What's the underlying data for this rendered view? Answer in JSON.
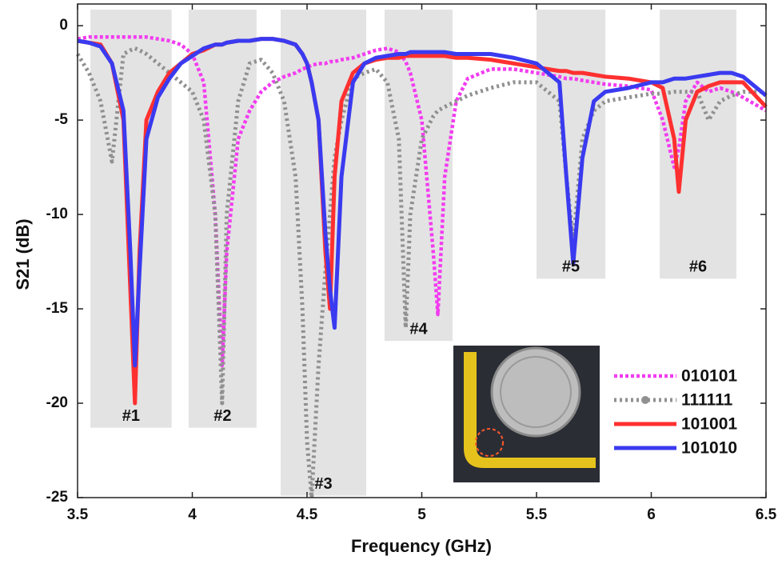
{
  "chart_data": {
    "type": "line",
    "xlabel": "Frequency (GHz)",
    "ylabel": "S21 (dB)",
    "xlim": [
      3.5,
      6.5
    ],
    "ylim": [
      -25,
      1.15
    ],
    "xticks": [
      3.5,
      4,
      4.5,
      5,
      5.5,
      6,
      6.5
    ],
    "yticks": [
      0,
      -5,
      -10,
      -15,
      -20,
      -25
    ],
    "x": [
      3.5,
      3.55,
      3.6,
      3.65,
      3.7,
      3.73,
      3.75,
      3.77,
      3.8,
      3.85,
      3.9,
      3.95,
      4.0,
      4.05,
      4.1,
      4.13,
      4.15,
      4.2,
      4.25,
      4.3,
      4.35,
      4.4,
      4.45,
      4.48,
      4.5,
      4.52,
      4.55,
      4.58,
      4.6,
      4.62,
      4.65,
      4.7,
      4.75,
      4.8,
      4.85,
      4.9,
      4.93,
      4.95,
      5.0,
      5.05,
      5.07,
      5.1,
      5.15,
      5.2,
      5.3,
      5.4,
      5.5,
      5.6,
      5.63,
      5.66,
      5.7,
      5.75,
      5.8,
      5.9,
      6.0,
      6.05,
      6.1,
      6.12,
      6.15,
      6.2,
      6.25,
      6.3,
      6.35,
      6.4,
      6.5
    ],
    "series": [
      {
        "name": "010101",
        "color": "#f23cf0",
        "linestyle": "dotted",
        "marker": "none",
        "values": [
          -0.7,
          -0.6,
          -0.6,
          -0.6,
          -0.6,
          -0.6,
          -0.6,
          -0.6,
          -0.6,
          -0.7,
          -0.8,
          -1.0,
          -1.5,
          -3,
          -10,
          -18,
          -12,
          -6,
          -4.5,
          -3.5,
          -3,
          -2.7,
          -2.5,
          -2.3,
          -2.2,
          -2.1,
          -2,
          -2,
          -1.9,
          -1.9,
          -1.8,
          -1.7,
          -1.5,
          -1.3,
          -1.2,
          -1.4,
          -1.9,
          -2.5,
          -5,
          -12,
          -15.3,
          -8,
          -4,
          -2.8,
          -2.3,
          -2.3,
          -2.5,
          -2.7,
          -2.8,
          -2.8,
          -2.9,
          -3,
          -3.1,
          -3.2,
          -3.4,
          -5,
          -7.5,
          -6.5,
          -4,
          -3,
          -3.5,
          -3.3,
          -3.5,
          -3.8,
          -4.5
        ]
      },
      {
        "name": "111111",
        "color": "#909090",
        "linestyle": "dotted",
        "marker": "o",
        "values": [
          -1.5,
          -2.5,
          -4,
          -7.2,
          -1.5,
          -1.3,
          -1.2,
          -1.3,
          -1.5,
          -2,
          -2.5,
          -3,
          -3.5,
          -5,
          -10,
          -20,
          -10,
          -4,
          -2,
          -1.8,
          -2.5,
          -4,
          -8,
          -15,
          -22,
          -25,
          -18,
          -13,
          -10,
          -7,
          -5,
          -2.8,
          -2.5,
          -2.3,
          -3,
          -6,
          -16,
          -10,
          -6,
          -4.8,
          -4.5,
          -4.3,
          -4,
          -3.7,
          -3.3,
          -3,
          -3,
          -4,
          -8,
          -11.5,
          -6,
          -4.5,
          -4,
          -3.8,
          -3.6,
          -3.6,
          -3.5,
          -3.5,
          -3.5,
          -3.5,
          -5,
          -4,
          -3.7,
          -3.5,
          -3.5
        ]
      },
      {
        "name": "101001",
        "color": "#ff3030",
        "linestyle": "solid",
        "marker": "none",
        "values": [
          -0.8,
          -0.9,
          -1,
          -2,
          -5,
          -14,
          -20,
          -12,
          -5,
          -3.5,
          -2.5,
          -2,
          -1.5,
          -1.3,
          -1.0,
          -1.0,
          -0.9,
          -0.8,
          -0.8,
          -0.7,
          -0.7,
          -0.8,
          -1,
          -1.5,
          -2,
          -3,
          -5,
          -12,
          -15,
          -8,
          -4,
          -2.5,
          -2,
          -1.8,
          -1.7,
          -1.7,
          -1.6,
          -1.6,
          -1.6,
          -1.6,
          -1.6,
          -1.6,
          -1.7,
          -1.7,
          -1.8,
          -2,
          -2.2,
          -2.4,
          -2.4,
          -2.5,
          -2.5,
          -2.6,
          -2.7,
          -2.8,
          -3,
          -3.3,
          -6,
          -8.8,
          -5,
          -3.5,
          -3.2,
          -3,
          -3,
          -3,
          -4.3
        ]
      },
      {
        "name": "101010",
        "color": "#3a3af0",
        "linestyle": "solid",
        "marker": "none",
        "values": [
          -0.8,
          -0.9,
          -1.1,
          -2,
          -4.5,
          -12,
          -18,
          -13,
          -6,
          -3.8,
          -2.8,
          -2,
          -1.6,
          -1.2,
          -1.0,
          -1.0,
          -0.9,
          -0.8,
          -0.8,
          -0.7,
          -0.7,
          -0.8,
          -1,
          -1.5,
          -2,
          -3,
          -5,
          -11,
          -14,
          -16,
          -8,
          -3,
          -2,
          -1.7,
          -1.6,
          -1.5,
          -1.5,
          -1.4,
          -1.4,
          -1.4,
          -1.4,
          -1.4,
          -1.5,
          -1.5,
          -1.5,
          -1.7,
          -2,
          -3,
          -8,
          -12.6,
          -7,
          -4,
          -3.5,
          -3.3,
          -3,
          -3,
          -2.8,
          -2.8,
          -2.8,
          -2.7,
          -2.6,
          -2.5,
          -2.5,
          -2.7,
          -3.7
        ]
      }
    ],
    "regions": [
      {
        "label": "#1",
        "xlim": [
          3.556,
          3.91
        ],
        "ylim": [
          -21.3,
          0.85
        ]
      },
      {
        "label": "#2",
        "xlim": [
          3.984,
          4.28
        ],
        "ylim": [
          -21.3,
          0.85
        ]
      },
      {
        "label": "#3",
        "xlim": [
          4.385,
          4.758
        ],
        "ylim": [
          -24.9,
          0.85
        ]
      },
      {
        "label": "#4",
        "xlim": [
          4.838,
          5.134
        ],
        "ylim": [
          -16.7,
          0.85
        ]
      },
      {
        "label": "#5",
        "xlim": [
          5.5,
          5.8
        ],
        "ylim": [
          -13.4,
          0.85
        ]
      },
      {
        "label": "#6",
        "xlim": [
          6.037,
          6.371
        ],
        "ylim": [
          -13.4,
          0.85
        ]
      }
    ],
    "region_color": "#e3e3e3"
  }
}
